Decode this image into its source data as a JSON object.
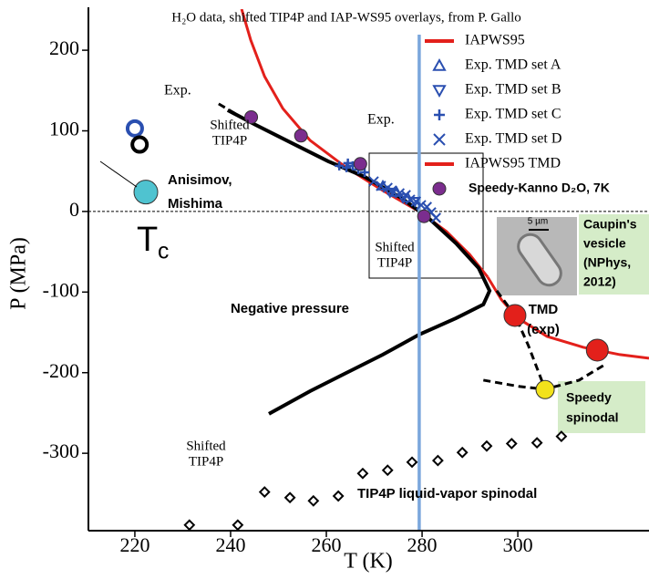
{
  "chart_data": {
    "type": "line",
    "title": "H₂O data, shifted TIP4P and IAP-WS95 overlays, from P. Gallo",
    "xlabel": "T (K)",
    "ylabel": "P (MPa)",
    "xlim": [
      210.3,
      327.4
    ],
    "ylim": [
      -396,
      251
    ],
    "xticks": [
      220,
      240,
      260,
      280,
      300
    ],
    "yticks": [
      200,
      100,
      0,
      -100,
      -200,
      -300
    ],
    "hlines": [
      0
    ],
    "vlines": [
      {
        "x": 279.4,
        "color": "#7aa6dc"
      }
    ],
    "series": [
      {
        "name": "IAPWS95",
        "color": "#e3201b",
        "line": "solid",
        "x": [
          242.3,
          244.2,
          247.1,
          250.9,
          256.6,
          264.2,
          271.8,
          279.4,
          285.1,
          289.9,
          293.7
        ],
        "values": [
          251,
          212.7,
          167.4,
          127.8,
          88.2,
          54.3,
          26.0,
          0,
          -24.9,
          -53.2,
          -81.4
        ]
      },
      {
        "name": "Exp. TMD set A",
        "color": "#2a4fb0",
        "marker": "triangle-up",
        "x": [
          271.8,
          274.7,
          277.0
        ],
        "values": [
          31.7,
          23.8,
          17.0
        ]
      },
      {
        "name": "Exp. TMD set B",
        "color": "#2a4fb0",
        "marker": "triangle-down",
        "x": [
          273.3,
          276.0,
          278.5
        ],
        "values": [
          23.8,
          17.0,
          12.4
        ]
      },
      {
        "name": "Exp. TMD set C",
        "color": "#2a4fb0",
        "marker": "plus",
        "x": [
          262.7,
          264.2,
          265.5,
          266.7,
          268.0,
          264.5
        ],
        "values": [
          56.6,
          54.3,
          56.6,
          52.0,
          48.6,
          60.0
        ]
      },
      {
        "name": "Exp. TMD set D",
        "color": "#2a4fb0",
        "marker": "cross",
        "x": [
          269.9,
          271.4,
          272.8,
          273.7,
          275.3,
          276.6,
          277.5,
          278.7,
          279.8,
          281.0,
          281.9,
          282.9
        ],
        "values": [
          37.3,
          31.7,
          29.4,
          26.0,
          22.6,
          20.4,
          14.7,
          12.4,
          7.9,
          5.7,
          -1.1,
          -7.9
        ]
      },
      {
        "name": "IAPWS95 TMD",
        "color": "#e3201b",
        "line": "solid",
        "x": [
          293.7,
          296.6,
          300.0,
          306.1,
          313.7,
          321.3,
          327.4
        ],
        "values": [
          -81.4,
          -109.7,
          -132.4,
          -155.0,
          -168.6,
          -177.6,
          -182.1
        ]
      },
      {
        "name": "Speedy-Kanno D₂O, 7K",
        "color": "#7b2d8e",
        "marker": "circle",
        "x": [
          244.3,
          254.7,
          267.1,
          280.4
        ],
        "values": [
          117,
          94,
          59,
          -6
        ]
      },
      {
        "color": "#000000",
        "line": "solid",
        "x": [
          239.4,
          245.2,
          252.8,
          260.4,
          268.0,
          275.6,
          281.3,
          287.1,
          291.8,
          294.1,
          292.8,
          287.1,
          279.4,
          271.8,
          264.2,
          256.6,
          248.0
        ],
        "values": [
          125.6,
          107.5,
          84.8,
          62.2,
          43.0,
          17.0,
          -7.9,
          -39.6,
          -70.1,
          -98.4,
          -115.4,
          -132.4,
          -152.7,
          -177.6,
          -200.2,
          -222.9,
          -251.1
        ]
      },
      {
        "color": "#000000",
        "line": "dashed",
        "x": [
          237.5,
          241.7
        ],
        "values": [
          133.5,
          118.8
        ]
      },
      {
        "color": "#000000",
        "line": "dashed",
        "x": [
          295.6,
          299.4,
          302.2,
          305.7
        ],
        "values": [
          -98.4,
          -129,
          -166.3,
          -220.6
        ]
      },
      {
        "color": "#000000",
        "line": "dashed",
        "x": [
          292.8,
          300.4,
          305.7,
          312.8,
          318.5
        ],
        "values": [
          -209.3,
          -217.2,
          -220.6,
          -209.3,
          -188.9
        ]
      },
      {
        "color": "#e3201b",
        "marker": "circle",
        "x": [
          299.4,
          316.6
        ],
        "values": [
          -129,
          -172
        ]
      },
      {
        "color": "#f2e21b",
        "marker": "circle",
        "x": [
          305.7
        ],
        "values": [
          -221
        ]
      },
      {
        "color": "#000000",
        "marker": "diamond",
        "x": [
          231.4,
          241.5,
          247.1,
          252.4,
          257.3,
          262.5,
          267.6,
          272.8,
          277.9,
          283.3,
          288.4,
          293.5,
          298.7,
          304.0,
          309.1
        ],
        "values": [
          -389,
          -389,
          -348,
          -355,
          -359,
          -353,
          -325,
          -321,
          -311,
          -309,
          -299,
          -291,
          -288,
          -287,
          -279
        ]
      },
      {
        "color": "#2a4fb0",
        "marker": "ring",
        "x": [
          220
        ],
        "values": [
          103
        ]
      },
      {
        "color": "#000000",
        "marker": "ring",
        "x": [
          221
        ],
        "values": [
          83
        ]
      },
      {
        "color": "#4fc3d0",
        "marker": "circle",
        "x": [
          222.3
        ],
        "values": [
          24
        ]
      }
    ],
    "annotations": [
      {
        "text": [
          "Exp."
        ]
      },
      {
        "text": [
          "Shifted",
          "TIP4P"
        ]
      },
      {
        "text": [
          "Exp."
        ]
      },
      {
        "text": [
          "Shifted",
          "TIP4P"
        ]
      },
      {
        "text": [
          "Shifted",
          "TIP4P"
        ]
      },
      {
        "text": [
          "Anisimov,",
          "Mishima"
        ]
      },
      {
        "text": [
          "T"
        ],
        "sub": "c"
      },
      {
        "text": [
          "Negative pressure"
        ]
      },
      {
        "text": [
          "TMD",
          "(exp)"
        ]
      },
      {
        "text": [
          "Caupin's",
          "vesicle",
          "(NPhys,",
          "2012)"
        ]
      },
      {
        "text": [
          "Speedy",
          "spinodal"
        ]
      },
      {
        "text": [
          "TIP4P liquid-vapor spinodal"
        ]
      },
      {
        "text": [
          "5 µm"
        ]
      }
    ]
  }
}
